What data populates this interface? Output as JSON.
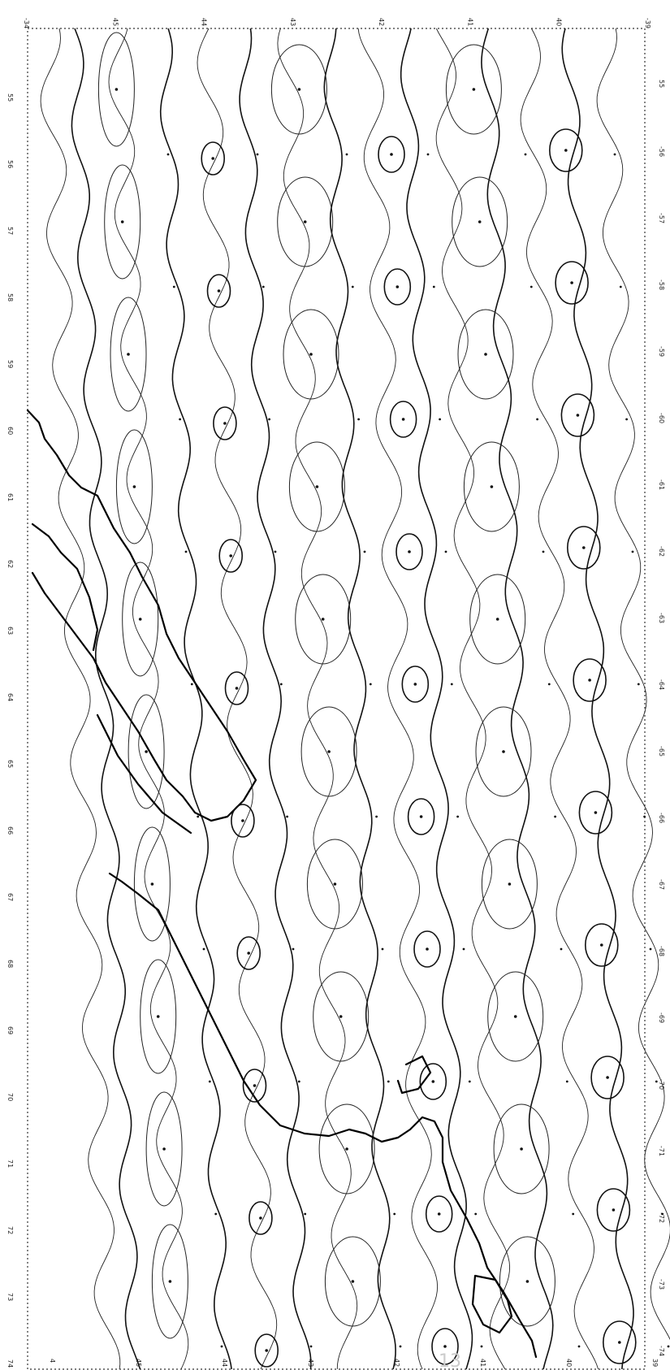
{
  "map": {
    "top_ticks": [
      "-34",
      "45",
      "44",
      "43",
      "42",
      "41",
      "40",
      "-39"
    ],
    "bottom_ticks": [
      "4",
      "45",
      "44",
      "43",
      "42",
      "41",
      "40",
      "39"
    ],
    "left_ticks": [
      "55",
      "56",
      "57",
      "58",
      "59",
      "60",
      "61",
      "62",
      "63",
      "64",
      "65",
      "66",
      "67",
      "68",
      "69",
      "70",
      "71",
      "72",
      "73",
      "74"
    ],
    "right_ticks": [
      "55",
      "-56",
      "-57",
      "-58",
      "-59",
      "-60",
      "-61",
      "-62",
      "-63",
      "-64",
      "-65",
      "-66",
      "-67",
      "-68",
      "-69",
      "-70",
      "-71",
      "-72",
      "-73",
      "-74"
    ],
    "bottom_caption": "13"
  }
}
